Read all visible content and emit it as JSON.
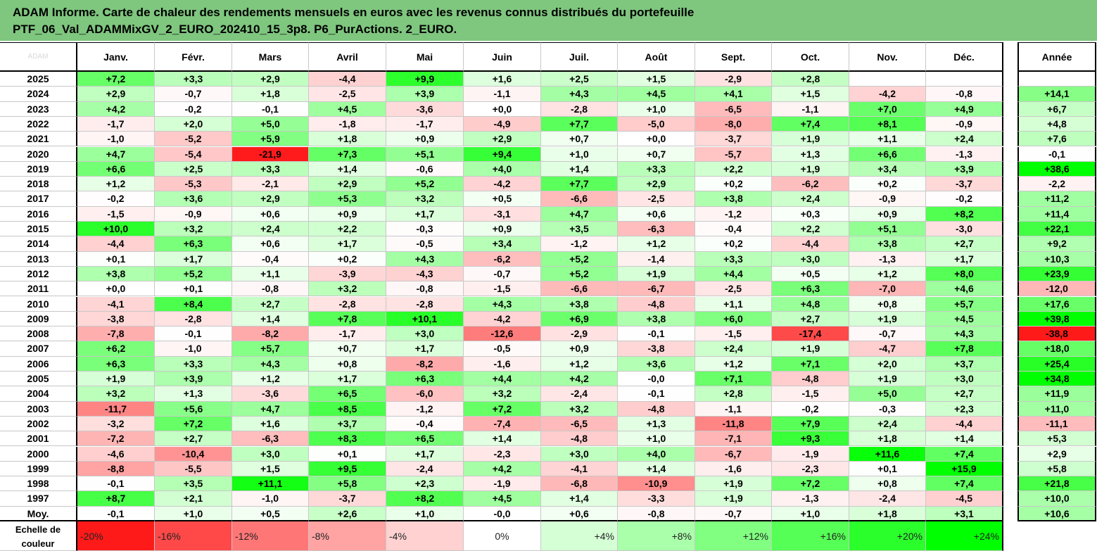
{
  "title": {
    "line1": "ADAM Informe. Carte de chaleur des rendements mensuels en euros avec les revenus connus distribués du portefeuille",
    "line2": "PTF_06_Val_ADAMMixGV_2_EURO_202410_15_3p8. P6_PurActions. 2_EURO."
  },
  "corner_label": "ADAM",
  "columns": [
    "Janv.",
    "Févr.",
    "Mars",
    "Avril",
    "Mai",
    "Juin",
    "Juil.",
    "Août",
    "Sept.",
    "Oct.",
    "Nov.",
    "Déc."
  ],
  "year_column": "Année",
  "chart_data": {
    "type": "heatmap",
    "rows": [
      {
        "label": "2025",
        "values": [
          "+7,2",
          "+3,3",
          "+2,9",
          "-4,4",
          "+9,9",
          "+1,6",
          "+2,5",
          "+1,5",
          "-2,9",
          "+2,8",
          "",
          ""
        ],
        "year": ""
      },
      {
        "label": "2024",
        "values": [
          "+2,9",
          "-0,7",
          "+1,8",
          "-2,5",
          "+3,9",
          "-1,1",
          "+4,3",
          "+4,5",
          "+4,1",
          "+1,5",
          "-4,2",
          "-0,8"
        ],
        "year": "+14,1"
      },
      {
        "label": "2023",
        "values": [
          "+4,2",
          "-0,2",
          "-0,1",
          "+4,5",
          "-3,6",
          "+0,0",
          "-2,8",
          "+1,0",
          "-6,5",
          "-1,1",
          "+7,0",
          "+4,9"
        ],
        "year": "+6,7"
      },
      {
        "label": "2022",
        "values": [
          "-1,7",
          "+2,0",
          "+5,0",
          "-1,8",
          "-1,7",
          "-4,9",
          "+7,7",
          "-5,0",
          "-8,0",
          "+7,4",
          "+8,1",
          "-0,9"
        ],
        "year": "+4,8"
      },
      {
        "label": "2021",
        "values": [
          "-1,0",
          "-5,2",
          "+5,9",
          "+1,8",
          "+0,9",
          "+2,9",
          "+0,7",
          "+0,0",
          "-3,7",
          "+1,9",
          "+1,1",
          "+2,4"
        ],
        "year": "+7,6"
      },
      {
        "label": "2020",
        "values": [
          "+4,7",
          "-5,4",
          "-21,9",
          "+7,3",
          "+5,1",
          "+9,4",
          "+1,0",
          "+0,7",
          "-5,7",
          "+1,3",
          "+6,6",
          "-1,3"
        ],
        "year": "-0,1"
      },
      {
        "label": "2019",
        "values": [
          "+6,6",
          "+2,5",
          "+3,3",
          "+1,4",
          "-0,6",
          "+4,0",
          "+1,4",
          "+3,3",
          "+2,2",
          "+1,9",
          "+3,4",
          "+3,9"
        ],
        "year": "+38,6"
      },
      {
        "label": "2018",
        "values": [
          "+1,2",
          "-5,3",
          "-2,1",
          "+2,9",
          "+5,2",
          "-4,2",
          "+7,7",
          "+2,9",
          "+0,2",
          "-6,2",
          "+0,2",
          "-3,7"
        ],
        "year": "-2,2"
      },
      {
        "label": "2017",
        "values": [
          "-0,2",
          "+3,6",
          "+2,9",
          "+5,3",
          "+3,2",
          "+0,5",
          "-6,6",
          "-2,5",
          "+3,8",
          "+2,4",
          "-0,9",
          "-0,2"
        ],
        "year": "+11,2"
      },
      {
        "label": "2016",
        "values": [
          "-1,5",
          "-0,9",
          "+0,6",
          "+0,9",
          "+1,7",
          "-3,1",
          "+4,7",
          "+0,6",
          "-1,2",
          "+0,3",
          "+0,9",
          "+8,2"
        ],
        "year": "+11,4"
      },
      {
        "label": "2015",
        "values": [
          "+10,0",
          "+3,2",
          "+2,4",
          "+2,2",
          "-0,3",
          "+0,9",
          "+3,5",
          "-6,3",
          "-0,4",
          "+2,2",
          "+5,1",
          "-3,0"
        ],
        "year": "+22,1"
      },
      {
        "label": "2014",
        "values": [
          "-4,4",
          "+6,3",
          "+0,6",
          "+1,7",
          "-0,5",
          "+3,4",
          "-1,2",
          "+1,2",
          "+0,2",
          "-4,4",
          "+3,8",
          "+2,7"
        ],
        "year": "+9,2"
      },
      {
        "label": "2013",
        "values": [
          "+0,1",
          "+1,7",
          "-0,4",
          "+0,2",
          "+4,3",
          "-6,2",
          "+5,2",
          "-1,4",
          "+3,3",
          "+3,0",
          "-1,3",
          "+1,7"
        ],
        "year": "+10,3"
      },
      {
        "label": "2012",
        "values": [
          "+3,8",
          "+5,2",
          "+1,1",
          "-3,9",
          "-4,3",
          "-0,7",
          "+5,2",
          "+1,9",
          "+4,4",
          "+0,5",
          "+1,2",
          "+8,0"
        ],
        "year": "+23,9"
      },
      {
        "label": "2011",
        "values": [
          "+0,0",
          "+0,1",
          "-0,8",
          "+3,2",
          "-0,8",
          "-1,5",
          "-6,6",
          "-6,7",
          "-2,5",
          "+6,3",
          "-7,0",
          "+4,6"
        ],
        "year": "-12,0"
      },
      {
        "label": "2010",
        "values": [
          "-4,1",
          "+8,4",
          "+2,7",
          "-2,8",
          "-2,8",
          "+4,3",
          "+3,8",
          "-4,8",
          "+1,1",
          "+4,8",
          "+0,8",
          "+5,7"
        ],
        "year": "+17,6"
      },
      {
        "label": "2009",
        "values": [
          "-3,8",
          "-2,8",
          "+1,4",
          "+7,8",
          "+10,1",
          "-4,2",
          "+6,9",
          "+3,8",
          "+6,0",
          "+2,7",
          "+1,9",
          "+4,5"
        ],
        "year": "+39,8"
      },
      {
        "label": "2008",
        "values": [
          "-7,8",
          "-0,1",
          "-8,2",
          "-1,7",
          "+3,0",
          "-12,6",
          "-2,9",
          "-0,1",
          "-1,5",
          "-17,4",
          "-0,7",
          "+4,3"
        ],
        "year": "-38,8"
      },
      {
        "label": "2007",
        "values": [
          "+6,2",
          "-1,0",
          "+5,7",
          "+0,7",
          "+1,7",
          "-0,5",
          "+0,9",
          "-3,8",
          "+2,4",
          "+1,9",
          "-4,7",
          "+7,8"
        ],
        "year": "+18,0"
      },
      {
        "label": "2006",
        "values": [
          "+6,3",
          "+3,3",
          "+4,3",
          "+0,8",
          "-8,2",
          "-1,6",
          "+1,2",
          "+3,6",
          "+1,2",
          "+7,1",
          "+2,0",
          "+3,7"
        ],
        "year": "+25,4"
      },
      {
        "label": "2005",
        "values": [
          "+1,9",
          "+3,9",
          "+1,2",
          "+1,7",
          "+6,3",
          "+4,4",
          "+4,2",
          "-0,0",
          "+7,1",
          "-4,8",
          "+1,9",
          "+3,0"
        ],
        "year": "+34,8"
      },
      {
        "label": "2004",
        "values": [
          "+3,2",
          "+1,3",
          "-3,6",
          "+6,5",
          "-6,0",
          "+3,2",
          "-2,4",
          "-0,1",
          "+2,8",
          "-1,5",
          "+5,0",
          "+2,7"
        ],
        "year": "+11,9"
      },
      {
        "label": "2003",
        "values": [
          "-11,7",
          "+5,6",
          "+4,7",
          "+8,5",
          "-1,2",
          "+7,2",
          "+3,2",
          "-4,8",
          "-1,1",
          "-0,2",
          "-0,3",
          "+2,3"
        ],
        "year": "+11,0"
      },
      {
        "label": "2002",
        "values": [
          "-3,2",
          "+7,2",
          "+1,6",
          "+3,7",
          "-0,4",
          "-7,4",
          "-6,5",
          "+1,3",
          "-11,8",
          "+7,9",
          "+2,4",
          "-4,4"
        ],
        "year": "-11,1"
      },
      {
        "label": "2001",
        "values": [
          "-7,2",
          "+2,7",
          "-6,3",
          "+8,3",
          "+6,5",
          "+1,4",
          "-4,8",
          "+1,0",
          "-7,1",
          "+9,3",
          "+1,8",
          "+1,4"
        ],
        "year": "+5,3"
      },
      {
        "label": "2000",
        "values": [
          "-4,6",
          "-10,4",
          "+3,0",
          "+0,1",
          "+1,7",
          "-2,3",
          "+3,0",
          "+4,0",
          "-6,7",
          "-1,9",
          "+11,6",
          "+7,4"
        ],
        "year": "+2,9"
      },
      {
        "label": "1999",
        "values": [
          "-8,8",
          "-5,5",
          "+1,5",
          "+9,5",
          "-2,4",
          "+4,2",
          "-4,1",
          "+1,4",
          "-1,6",
          "-2,3",
          "+0,1",
          "+15,9"
        ],
        "year": "+5,8"
      },
      {
        "label": "1998",
        "values": [
          "-0,1",
          "+3,5",
          "+11,1",
          "+5,8",
          "+2,3",
          "-1,9",
          "-6,8",
          "-10,9",
          "+1,9",
          "+7,2",
          "+0,8",
          "+7,4"
        ],
        "year": "+21,8"
      },
      {
        "label": "1997",
        "values": [
          "+8,7",
          "+2,1",
          "-1,0",
          "-3,7",
          "+8,2",
          "+4,5",
          "+1,4",
          "-3,3",
          "+1,9",
          "-1,3",
          "-2,4",
          "-4,5"
        ],
        "year": "+10,0"
      },
      {
        "label": "Moy.",
        "values": [
          "-0,1",
          "+1,0",
          "+0,5",
          "+2,6",
          "+1,0",
          "-0,0",
          "+0,6",
          "-0,8",
          "-0,7",
          "+1,0",
          "+1,8",
          "+3,1"
        ],
        "year": "+10,6"
      }
    ],
    "scale": {
      "label_line1": "Echelle de",
      "label_line2": "couleur",
      "steps": [
        "-20%",
        "-16%",
        "-12%",
        "-8%",
        "-4%",
        "0%",
        "+4%",
        "+8%",
        "+12%",
        "+16%",
        "+20%",
        "+24%"
      ],
      "step_values": [
        -20,
        -16,
        -12,
        -8,
        -4,
        0,
        4,
        8,
        12,
        16,
        20,
        24
      ]
    },
    "colors": {
      "negative_max": "#ff1a1a",
      "zero": "#ffffff",
      "positive_max": "#00ff00"
    }
  }
}
